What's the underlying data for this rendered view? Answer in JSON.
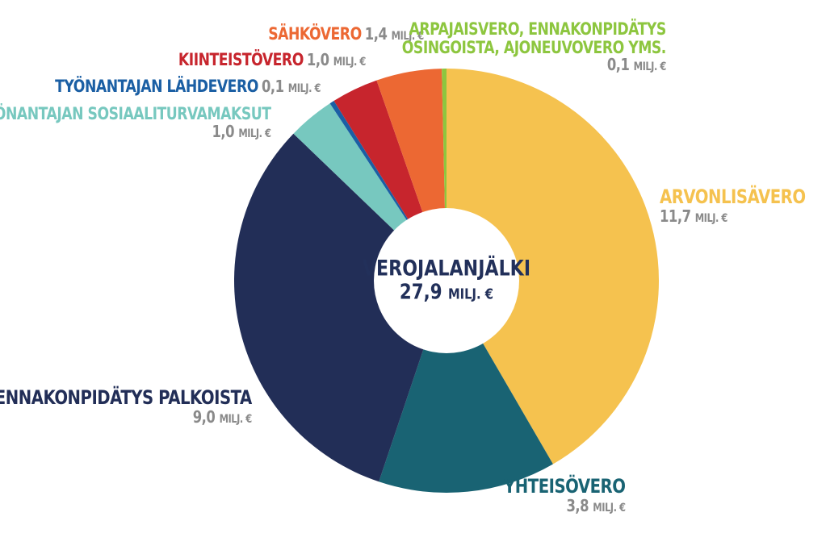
{
  "chart_data": {
    "type": "pie",
    "variant": "donut",
    "center_title": "VEROJALANJÄLKI",
    "center_value": "27,9",
    "center_unit": "MILJ. €",
    "unit": "MILJ. €",
    "slices": [
      {
        "label": "ARVONLISÄVERO",
        "value": 11.7,
        "display": "11,7",
        "color": "#f5c24f"
      },
      {
        "label": "YHTEISÖVERO",
        "value": 3.8,
        "display": "3,8",
        "color": "#196373"
      },
      {
        "label": "ENNAKONPIDÄTYS PALKOISTA",
        "value": 9.0,
        "display": "9,0",
        "color": "#222e57"
      },
      {
        "label": "TYÖNANTAJAN SOSIAALITURVAMAKSUT",
        "value": 1.0,
        "display": "1,0",
        "color": "#77c8bf"
      },
      {
        "label": "TYÖNANTAJAN LÄHDEVERO",
        "value": 0.1,
        "display": "0,1",
        "color": "#1b5fa4"
      },
      {
        "label": "KIINTEISTÖVERO",
        "value": 1.0,
        "display": "1,0",
        "color": "#c7252d"
      },
      {
        "label": "SÄHKÖVERO",
        "value": 1.4,
        "display": "1,4",
        "color": "#ec6833"
      },
      {
        "label_lines": [
          "ARPAJAISVERO, ENNAKONPIDÄTYS",
          "OSINGOISTA, AJONEUVOVERO YMS."
        ],
        "value": 0.1,
        "display": "0,1",
        "color": "#8dc63f"
      }
    ]
  }
}
